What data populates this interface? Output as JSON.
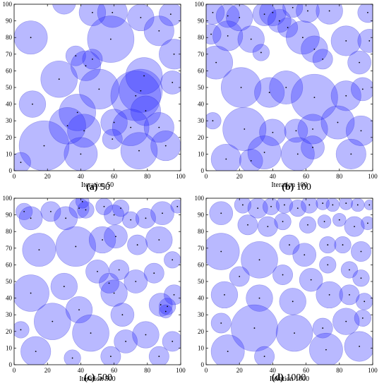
{
  "figure": {
    "captions": [
      {
        "letter": "(a)",
        "value": "50"
      },
      {
        "letter": "(b)",
        "value": "100"
      },
      {
        "letter": "(c)",
        "value": "500"
      },
      {
        "letter": "(d)",
        "value": "1000"
      }
    ],
    "colors": {
      "fill": "#2a2aff",
      "fill_opacity": 0.33,
      "edge": "#1f1fc8",
      "dot": "#000000"
    }
  },
  "chart_data": [
    {
      "type": "scatter",
      "title": "",
      "xlabel": "Iteration 50",
      "ylabel": "",
      "xlim": [
        0,
        100
      ],
      "ylim": [
        0,
        100
      ],
      "xticks": [
        0,
        20,
        40,
        60,
        80,
        100
      ],
      "yticks": [
        0,
        10,
        20,
        30,
        40,
        50,
        60,
        70,
        80,
        90,
        100
      ],
      "grid": false,
      "circles": [
        {
          "x": 10,
          "y": 80,
          "r": 10
        },
        {
          "x": 59,
          "y": 95,
          "r": 9
        },
        {
          "x": 58,
          "y": 79,
          "r": 14
        },
        {
          "x": 47,
          "y": 95,
          "r": 8
        },
        {
          "x": 30,
          "y": 101,
          "r": 7
        },
        {
          "x": 76,
          "y": 92,
          "r": 8
        },
        {
          "x": 87,
          "y": 84,
          "r": 9
        },
        {
          "x": 94,
          "y": 94,
          "r": 7
        },
        {
          "x": 96,
          "y": 70,
          "r": 9
        },
        {
          "x": 37,
          "y": 69,
          "r": 6
        },
        {
          "x": 47,
          "y": 67,
          "r": 6
        },
        {
          "x": 43,
          "y": 63,
          "r": 9
        },
        {
          "x": 27,
          "y": 55,
          "r": 11
        },
        {
          "x": 11,
          "y": 40,
          "r": 8
        },
        {
          "x": 51,
          "y": 49,
          "r": 12
        },
        {
          "x": 76,
          "y": 48,
          "r": 13
        },
        {
          "x": 73,
          "y": 45,
          "r": 15
        },
        {
          "x": 78,
          "y": 57,
          "r": 11
        },
        {
          "x": 95,
          "y": 53,
          "r": 7
        },
        {
          "x": 79,
          "y": 36,
          "r": 9
        },
        {
          "x": 38,
          "y": 35,
          "r": 11
        },
        {
          "x": 42,
          "y": 24,
          "r": 10
        },
        {
          "x": 60,
          "y": 29,
          "r": 8
        },
        {
          "x": 70,
          "y": 26,
          "r": 11
        },
        {
          "x": 87,
          "y": 26,
          "r": 9
        },
        {
          "x": 91,
          "y": 15,
          "r": 9
        },
        {
          "x": 75,
          "y": 12,
          "r": 11
        },
        {
          "x": 59,
          "y": 19,
          "r": 6
        },
        {
          "x": 40,
          "y": 10,
          "r": 10
        },
        {
          "x": 18,
          "y": 15,
          "r": 15
        },
        {
          "x": 32,
          "y": 27,
          "r": 11
        },
        {
          "x": 4,
          "y": 5,
          "r": 6
        }
      ]
    },
    {
      "type": "scatter",
      "title": "",
      "xlabel": "Iteration 100",
      "ylabel": "",
      "xlim": [
        0,
        100
      ],
      "ylim": [
        0,
        100
      ],
      "xticks": [
        0,
        20,
        40,
        60,
        80,
        100
      ],
      "yticks": [
        0,
        10,
        20,
        30,
        40,
        50,
        60,
        70,
        80,
        90,
        100
      ],
      "grid": false,
      "circles": [
        {
          "x": 4,
          "y": 95,
          "r": 7
        },
        {
          "x": 13,
          "y": 93,
          "r": 7
        },
        {
          "x": 20,
          "y": 92,
          "r": 8
        },
        {
          "x": 35,
          "y": 94,
          "r": 7
        },
        {
          "x": 40,
          "y": 95,
          "r": 8
        },
        {
          "x": 44,
          "y": 90,
          "r": 7
        },
        {
          "x": 52,
          "y": 98,
          "r": 6
        },
        {
          "x": 61,
          "y": 96,
          "r": 7
        },
        {
          "x": 74,
          "y": 96,
          "r": 8
        },
        {
          "x": 97,
          "y": 95,
          "r": 6
        },
        {
          "x": 3,
          "y": 82,
          "r": 6
        },
        {
          "x": 13,
          "y": 81,
          "r": 9
        },
        {
          "x": 27,
          "y": 79,
          "r": 8
        },
        {
          "x": 49,
          "y": 86,
          "r": 6
        },
        {
          "x": 58,
          "y": 80,
          "r": 10
        },
        {
          "x": 65,
          "y": 73,
          "r": 8
        },
        {
          "x": 70,
          "y": 67,
          "r": 6
        },
        {
          "x": 84,
          "y": 78,
          "r": 9
        },
        {
          "x": 98,
          "y": 78,
          "r": 7
        },
        {
          "x": 33,
          "y": 71,
          "r": 5
        },
        {
          "x": 6,
          "y": 65,
          "r": 10
        },
        {
          "x": 92,
          "y": 65,
          "r": 7
        },
        {
          "x": 21,
          "y": 50,
          "r": 12
        },
        {
          "x": 38,
          "y": 47,
          "r": 9
        },
        {
          "x": 48,
          "y": 50,
          "r": 10
        },
        {
          "x": 65,
          "y": 44,
          "r": 14
        },
        {
          "x": 84,
          "y": 45,
          "r": 9
        },
        {
          "x": 94,
          "y": 49,
          "r": 7
        },
        {
          "x": 4,
          "y": 30,
          "r": 5
        },
        {
          "x": 23,
          "y": 25,
          "r": 13
        },
        {
          "x": 40,
          "y": 23,
          "r": 8
        },
        {
          "x": 54,
          "y": 24,
          "r": 7
        },
        {
          "x": 64,
          "y": 25,
          "r": 9
        },
        {
          "x": 79,
          "y": 29,
          "r": 10
        },
        {
          "x": 93,
          "y": 24,
          "r": 9
        },
        {
          "x": 12,
          "y": 7,
          "r": 9
        },
        {
          "x": 27,
          "y": 6,
          "r": 7
        },
        {
          "x": 35,
          "y": 11,
          "r": 10
        },
        {
          "x": 55,
          "y": 10,
          "r": 10
        },
        {
          "x": 64,
          "y": 14,
          "r": 7
        },
        {
          "x": 87,
          "y": 10,
          "r": 9
        }
      ]
    },
    {
      "type": "scatter",
      "title": "",
      "xlabel": "Iteration 500",
      "ylabel": "",
      "xlim": [
        0,
        100
      ],
      "ylim": [
        0,
        100
      ],
      "xticks": [
        0,
        20,
        40,
        60,
        80,
        100
      ],
      "yticks": [
        0,
        10,
        20,
        30,
        40,
        50,
        60,
        70,
        80,
        90,
        100
      ],
      "grid": false,
      "circles": [
        {
          "x": 6,
          "y": 92,
          "r": 5
        },
        {
          "x": 10,
          "y": 88,
          "r": 7
        },
        {
          "x": 22,
          "y": 92,
          "r": 6
        },
        {
          "x": 31,
          "y": 88,
          "r": 7
        },
        {
          "x": 39,
          "y": 94,
          "r": 6
        },
        {
          "x": 43,
          "y": 93,
          "r": 5
        },
        {
          "x": 41,
          "y": 98,
          "r": 4
        },
        {
          "x": 54,
          "y": 95,
          "r": 5
        },
        {
          "x": 60,
          "y": 90,
          "r": 6
        },
        {
          "x": 64,
          "y": 94,
          "r": 5
        },
        {
          "x": 70,
          "y": 87,
          "r": 5
        },
        {
          "x": 79,
          "y": 88,
          "r": 6
        },
        {
          "x": 89,
          "y": 91,
          "r": 7
        },
        {
          "x": 98,
          "y": 95,
          "r": 4
        },
        {
          "x": 15,
          "y": 69,
          "r": 10
        },
        {
          "x": 37,
          "y": 71,
          "r": 12
        },
        {
          "x": 53,
          "y": 75,
          "r": 8
        },
        {
          "x": 61,
          "y": 77,
          "r": 7
        },
        {
          "x": 74,
          "y": 72,
          "r": 6
        },
        {
          "x": 87,
          "y": 75,
          "r": 8
        },
        {
          "x": 95,
          "y": 63,
          "r": 5
        },
        {
          "x": 10,
          "y": 43,
          "r": 11
        },
        {
          "x": 30,
          "y": 47,
          "r": 8
        },
        {
          "x": 50,
          "y": 56,
          "r": 7
        },
        {
          "x": 57,
          "y": 49,
          "r": 6
        },
        {
          "x": 63,
          "y": 57,
          "r": 6
        },
        {
          "x": 73,
          "y": 50,
          "r": 7
        },
        {
          "x": 84,
          "y": 55,
          "r": 6
        },
        {
          "x": 96,
          "y": 42,
          "r": 6
        },
        {
          "x": 39,
          "y": 33,
          "r": 8
        },
        {
          "x": 60,
          "y": 43,
          "r": 8
        },
        {
          "x": 65,
          "y": 30,
          "r": 7
        },
        {
          "x": 88,
          "y": 36,
          "r": 7
        },
        {
          "x": 92,
          "y": 35,
          "r": 5
        },
        {
          "x": 91,
          "y": 32,
          "r": 4
        },
        {
          "x": 4,
          "y": 21,
          "r": 5
        },
        {
          "x": 23,
          "y": 26,
          "r": 11
        },
        {
          "x": 46,
          "y": 19,
          "r": 11
        },
        {
          "x": 67,
          "y": 14,
          "r": 7
        },
        {
          "x": 79,
          "y": 18,
          "r": 8
        },
        {
          "x": 95,
          "y": 14,
          "r": 6
        },
        {
          "x": 13,
          "y": 8,
          "r": 9
        },
        {
          "x": 35,
          "y": 4,
          "r": 5
        },
        {
          "x": 58,
          "y": 5,
          "r": 6
        },
        {
          "x": 87,
          "y": 5,
          "r": 6
        }
      ]
    },
    {
      "type": "scatter",
      "title": "",
      "xlabel": "Iteration 1000",
      "ylabel": "",
      "xlim": [
        0,
        100
      ],
      "ylim": [
        0,
        100
      ],
      "xticks": [
        0,
        20,
        40,
        60,
        80,
        100
      ],
      "yticks": [
        0,
        10,
        20,
        30,
        40,
        50,
        60,
        70,
        80,
        90,
        100
      ],
      "grid": false,
      "circles": [
        {
          "x": 9,
          "y": 91,
          "r": 7
        },
        {
          "x": 22,
          "y": 96,
          "r": 5
        },
        {
          "x": 31,
          "y": 94,
          "r": 6
        },
        {
          "x": 39,
          "y": 95,
          "r": 5
        },
        {
          "x": 47,
          "y": 96,
          "r": 5
        },
        {
          "x": 55,
          "y": 94,
          "r": 5
        },
        {
          "x": 62,
          "y": 96,
          "r": 5
        },
        {
          "x": 70,
          "y": 97,
          "r": 4
        },
        {
          "x": 76,
          "y": 96,
          "r": 4
        },
        {
          "x": 84,
          "y": 97,
          "r": 4
        },
        {
          "x": 91,
          "y": 96,
          "r": 4
        },
        {
          "x": 98,
          "y": 96,
          "r": 3
        },
        {
          "x": 25,
          "y": 84,
          "r": 6
        },
        {
          "x": 37,
          "y": 83,
          "r": 6
        },
        {
          "x": 46,
          "y": 86,
          "r": 5
        },
        {
          "x": 61,
          "y": 84,
          "r": 5
        },
        {
          "x": 71,
          "y": 86,
          "r": 4
        },
        {
          "x": 80,
          "y": 87,
          "r": 4
        },
        {
          "x": 89,
          "y": 83,
          "r": 6
        },
        {
          "x": 97,
          "y": 85,
          "r": 4
        },
        {
          "x": 9,
          "y": 68,
          "r": 11
        },
        {
          "x": 32,
          "y": 63,
          "r": 11
        },
        {
          "x": 50,
          "y": 72,
          "r": 6
        },
        {
          "x": 59,
          "y": 66,
          "r": 7
        },
        {
          "x": 73,
          "y": 72,
          "r": 5
        },
        {
          "x": 82,
          "y": 72,
          "r": 5
        },
        {
          "x": 93,
          "y": 68,
          "r": 6
        },
        {
          "x": 20,
          "y": 53,
          "r": 6
        },
        {
          "x": 46,
          "y": 54,
          "r": 6
        },
        {
          "x": 63,
          "y": 51,
          "r": 7
        },
        {
          "x": 73,
          "y": 60,
          "r": 5
        },
        {
          "x": 86,
          "y": 57,
          "r": 5
        },
        {
          "x": 93,
          "y": 52,
          "r": 5
        },
        {
          "x": 11,
          "y": 42,
          "r": 8
        },
        {
          "x": 32,
          "y": 40,
          "r": 8
        },
        {
          "x": 52,
          "y": 38,
          "r": 8
        },
        {
          "x": 74,
          "y": 42,
          "r": 8
        },
        {
          "x": 86,
          "y": 42,
          "r": 6
        },
        {
          "x": 95,
          "y": 38,
          "r": 5
        },
        {
          "x": 9,
          "y": 25,
          "r": 6
        },
        {
          "x": 29,
          "y": 22,
          "r": 14
        },
        {
          "x": 53,
          "y": 19,
          "r": 11
        },
        {
          "x": 70,
          "y": 22,
          "r": 6
        },
        {
          "x": 84,
          "y": 26,
          "r": 8
        },
        {
          "x": 94,
          "y": 28,
          "r": 5
        },
        {
          "x": 13,
          "y": 8,
          "r": 10
        },
        {
          "x": 35,
          "y": 5,
          "r": 6
        },
        {
          "x": 72,
          "y": 9,
          "r": 10
        },
        {
          "x": 92,
          "y": 11,
          "r": 9
        }
      ]
    }
  ]
}
